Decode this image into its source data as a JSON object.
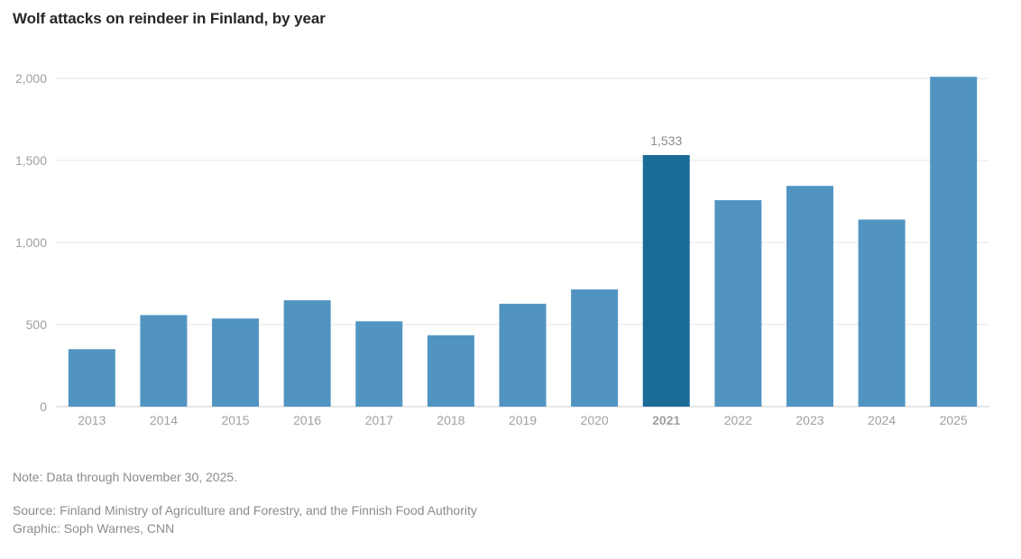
{
  "chart_data": {
    "type": "bar",
    "title": "Wolf attacks on reindeer in Finland, by year",
    "categories": [
      "2013",
      "2014",
      "2015",
      "2016",
      "2017",
      "2018",
      "2019",
      "2020",
      "2021",
      "2022",
      "2023",
      "2024",
      "2025"
    ],
    "values": [
      350,
      558,
      537,
      648,
      520,
      435,
      627,
      714,
      1533,
      1258,
      1345,
      1140,
      2010
    ],
    "highlight_category": "2021",
    "data_labels": [
      {
        "category": "2021",
        "text": "1,533"
      }
    ],
    "yticks": [
      0,
      500,
      1000,
      1500,
      2000
    ],
    "ytick_labels": [
      "0",
      "500",
      "1,000",
      "1,500",
      "2,000"
    ],
    "ylim": [
      0,
      2000
    ],
    "grid": true,
    "xlabel": "",
    "ylabel": "",
    "colors": {
      "bar": "#5194c2",
      "highlight": "#1b6b99",
      "grid": "#e6e6e6",
      "axis": "#cccccc"
    }
  },
  "footer": {
    "note": "Note: Data through November 30, 2025.",
    "source": "Source: Finland Ministry of Agriculture and Forestry, and the Finnish Food Authority",
    "credit": "Graphic: Soph Warnes, CNN"
  }
}
